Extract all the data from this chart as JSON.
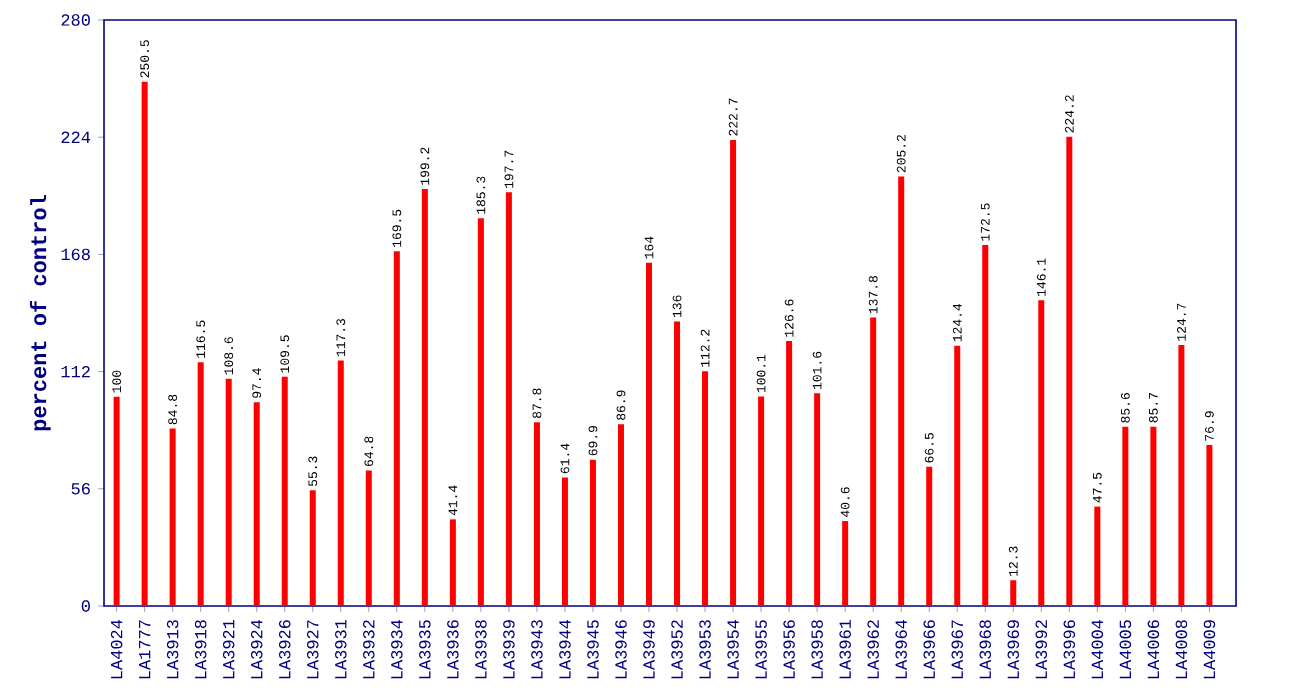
{
  "chart_data": {
    "type": "bar",
    "ylabel": "percent of control",
    "categories": [
      "LA4024",
      "LA1777",
      "LA3913",
      "LA3918",
      "LA3921",
      "LA3924",
      "LA3926",
      "LA3927",
      "LA3931",
      "LA3932",
      "LA3934",
      "LA3935",
      "LA3936",
      "LA3938",
      "LA3939",
      "LA3943",
      "LA3944",
      "LA3945",
      "LA3946",
      "LA3949",
      "LA3952",
      "LA3953",
      "LA3954",
      "LA3955",
      "LA3956",
      "LA3958",
      "LA3961",
      "LA3962",
      "LA3964",
      "LA3966",
      "LA3967",
      "LA3968",
      "LA3969",
      "LA3992",
      "LA3996",
      "LA4004",
      "LA4005",
      "LA4006",
      "LA4008",
      "LA4009"
    ],
    "values": [
      100,
      250.5,
      84.8,
      116.5,
      108.6,
      97.4,
      109.5,
      55.3,
      117.3,
      64.8,
      169.5,
      199.2,
      41.4,
      185.3,
      197.7,
      87.8,
      61.4,
      69.9,
      86.9,
      164,
      136,
      112.2,
      222.7,
      100.1,
      126.6,
      101.6,
      40.6,
      137.8,
      205.2,
      66.5,
      124.4,
      172.5,
      12.3,
      146.1,
      224.2,
      47.5,
      85.6,
      85.7,
      124.7,
      76.9
    ],
    "color": "#ff0000",
    "ylim": [
      0,
      280
    ],
    "yticks": [
      0,
      56,
      112,
      168,
      224,
      280
    ],
    "data_labels": true
  }
}
